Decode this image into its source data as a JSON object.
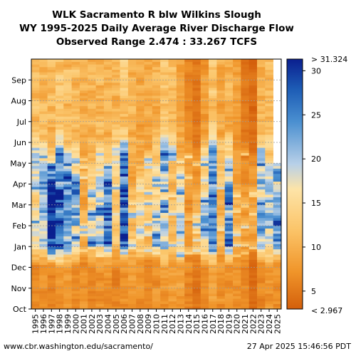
{
  "chart_data": {
    "type": "heatmap",
    "title_lines": [
      "WLK Sacramento R blw Wilkins Slough",
      "WY 1995-2025 Daily Average River Discharge Flow",
      "Observed Range 2.474 : 33.267 TCFS"
    ],
    "years": [
      "1995",
      "1996",
      "1997",
      "1998",
      "1999",
      "2000",
      "2001",
      "2002",
      "2003",
      "2004",
      "2005",
      "2006",
      "2007",
      "2008",
      "2009",
      "2010",
      "2011",
      "2012",
      "2013",
      "2014",
      "2015",
      "2016",
      "2017",
      "2018",
      "2019",
      "2020",
      "2021",
      "2022",
      "2023",
      "2024",
      "2025"
    ],
    "months": [
      "Oct",
      "Nov",
      "Dec",
      "Jan",
      "Feb",
      "Mar",
      "Apr",
      "May",
      "Jun",
      "Jul",
      "Aug",
      "Sep"
    ],
    "unit": "TCFS",
    "observed_range": [
      2.474,
      33.267
    ],
    "colorbar": {
      "min": 2.967,
      "max": 31.324,
      "ticks": [
        5,
        10,
        15,
        20,
        25,
        30
      ],
      "min_label": "< 2.967",
      "max_label": "> 31.324"
    },
    "missing_after_year": "2025",
    "missing_from_month": "May",
    "yearly_levels": [
      {
        "year": "1995",
        "fall": 6,
        "winter": 16,
        "spring": 20,
        "summer": 11
      },
      {
        "year": "1996",
        "fall": 7,
        "winter": 20,
        "spring": 15,
        "summer": 11
      },
      {
        "year": "1997",
        "fall": 6,
        "winter": 30,
        "spring": 12,
        "summer": 11
      },
      {
        "year": "1998",
        "fall": 7,
        "winter": 28,
        "spring": 22,
        "summer": 12
      },
      {
        "year": "1999",
        "fall": 8,
        "winter": 22,
        "spring": 16,
        "summer": 11
      },
      {
        "year": "2000",
        "fall": 7,
        "winter": 20,
        "spring": 14,
        "summer": 11
      },
      {
        "year": "2001",
        "fall": 7,
        "winter": 9,
        "spring": 8,
        "summer": 10
      },
      {
        "year": "2002",
        "fall": 6,
        "winter": 16,
        "spring": 10,
        "summer": 10
      },
      {
        "year": "2003",
        "fall": 7,
        "winter": 19,
        "spring": 15,
        "summer": 11
      },
      {
        "year": "2004",
        "fall": 7,
        "winter": 22,
        "spring": 11,
        "summer": 10
      },
      {
        "year": "2005",
        "fall": 6,
        "winter": 12,
        "spring": 18,
        "summer": 11
      },
      {
        "year": "2006",
        "fall": 7,
        "winter": 27,
        "spring": 26,
        "summer": 12
      },
      {
        "year": "2007",
        "fall": 8,
        "winter": 11,
        "spring": 9,
        "summer": 10
      },
      {
        "year": "2008",
        "fall": 7,
        "winter": 15,
        "spring": 9,
        "summer": 9
      },
      {
        "year": "2009",
        "fall": 6,
        "winter": 12,
        "spring": 10,
        "summer": 9
      },
      {
        "year": "2010",
        "fall": 7,
        "winter": 15,
        "spring": 13,
        "summer": 10
      },
      {
        "year": "2011",
        "fall": 8,
        "winter": 18,
        "spring": 21,
        "summer": 12
      },
      {
        "year": "2012",
        "fall": 8,
        "winter": 10,
        "spring": 15,
        "summer": 11
      },
      {
        "year": "2013",
        "fall": 8,
        "winter": 16,
        "spring": 8,
        "summer": 9
      },
      {
        "year": "2014",
        "fall": 6,
        "winter": 7,
        "spring": 7,
        "summer": 6
      },
      {
        "year": "2015",
        "fall": 5,
        "winter": 9,
        "spring": 6,
        "summer": 5
      },
      {
        "year": "2016",
        "fall": 6,
        "winter": 19,
        "spring": 13,
        "summer": 8
      },
      {
        "year": "2017",
        "fall": 8,
        "winter": 27,
        "spring": 22,
        "summer": 12
      },
      {
        "year": "2018",
        "fall": 7,
        "winter": 10,
        "spring": 14,
        "summer": 9
      },
      {
        "year": "2019",
        "fall": 7,
        "winter": 23,
        "spring": 15,
        "summer": 10
      },
      {
        "year": "2020",
        "fall": 7,
        "winter": 9,
        "spring": 8,
        "summer": 8
      },
      {
        "year": "2021",
        "fall": 6,
        "winter": 8,
        "spring": 6,
        "summer": 5
      },
      {
        "year": "2022",
        "fall": 4,
        "winter": 9,
        "spring": 5,
        "summer": 4
      },
      {
        "year": "2023",
        "fall": 6,
        "winter": 20,
        "spring": 18,
        "summer": 10
      },
      {
        "year": "2024",
        "fall": 8,
        "winter": 19,
        "spring": 14,
        "summer": 11
      },
      {
        "year": "2025",
        "fall": 7,
        "winter": 22,
        "spring": 16,
        "summer": 11
      }
    ],
    "colors": {
      "low": "#d45f0b",
      "mid_low": "#f2a33a",
      "mid": "#fce3a6",
      "mid_high": "#b8d0e8",
      "high": "#2f7fc1",
      "max": "#0a1f8f"
    }
  },
  "footer": {
    "left": "www.cbr.washington.edu/sacramento/",
    "right": "27 Apr 2025 15:46:56 PDT"
  }
}
